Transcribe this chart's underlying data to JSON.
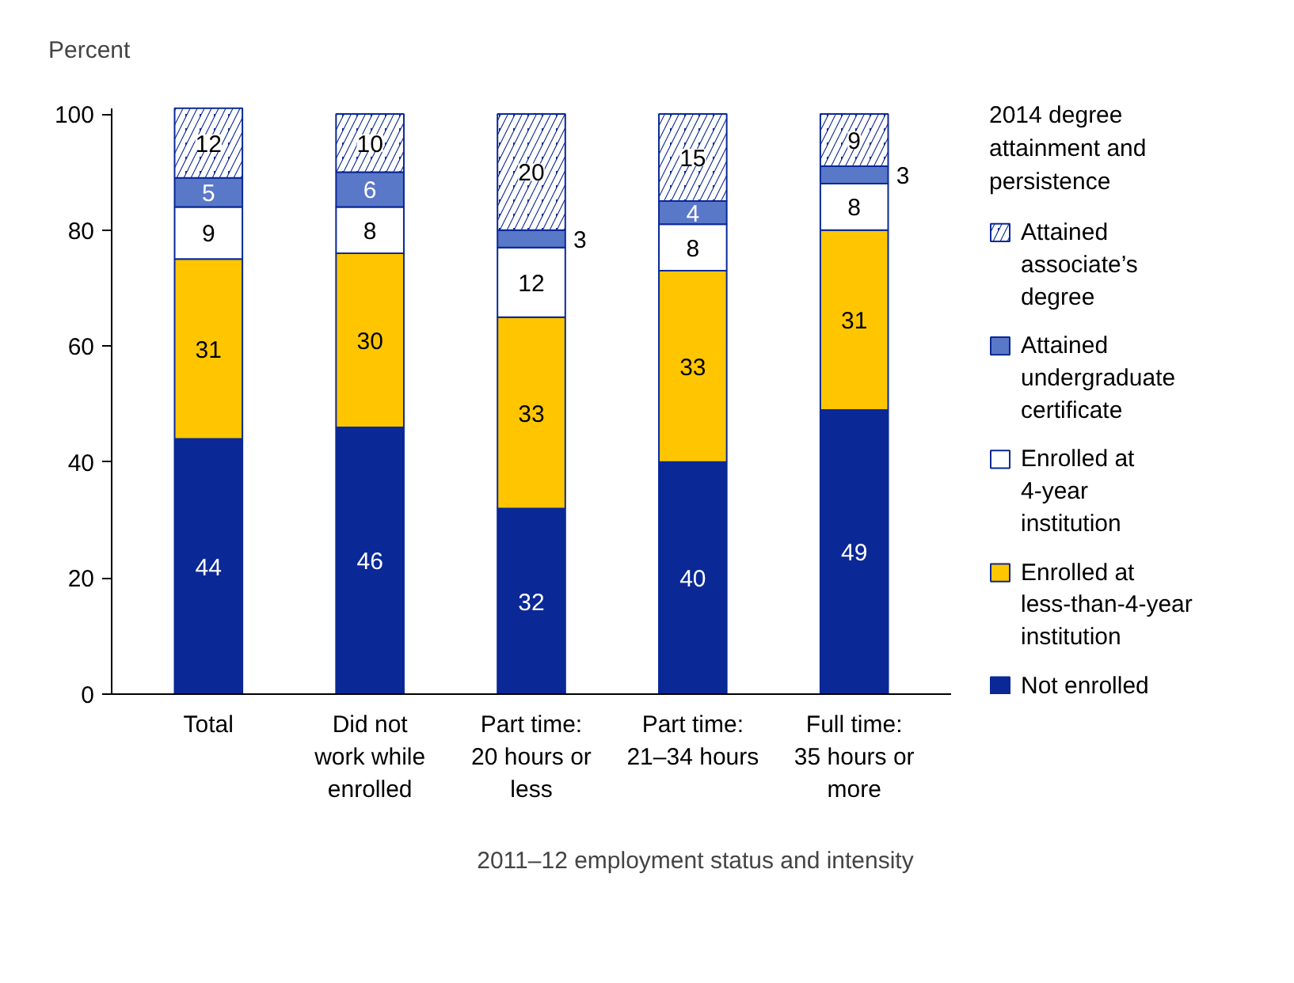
{
  "chart_data": {
    "type": "bar",
    "stacked": true,
    "xlabel": "2011–12 employment status and intensity",
    "ylabel": "Percent",
    "legend_title": "2014 degree attainment and persistence",
    "categories": [
      "Total",
      "Did not work while enrolled",
      "Part time: 20 hours or less",
      "Part time: 21–34 hours",
      "Full time: 35 hours or more"
    ],
    "series": [
      {
        "name": "Not enrolled",
        "color": "#0a2896",
        "values": [
          44,
          46,
          32,
          40,
          49
        ]
      },
      {
        "name": "Enrolled at less-than-4-year institution",
        "color": "#ffc600",
        "values": [
          31,
          30,
          33,
          33,
          31
        ]
      },
      {
        "name": "Enrolled at 4-year institution",
        "color": "#ffffff",
        "values": [
          9,
          8,
          12,
          8,
          8
        ]
      },
      {
        "name": "Attained undergraduate certificate",
        "color": "#5a78c8",
        "values": [
          5,
          6,
          3,
          4,
          3
        ]
      },
      {
        "name": "Attained associate’s degree",
        "color": "#0a2896",
        "values": [
          12,
          10,
          20,
          15,
          9
        ]
      }
    ],
    "ylim": [
      0,
      101
    ],
    "yticks": [
      0,
      20,
      40,
      60,
      80,
      100
    ],
    "grid": false,
    "legend": "right",
    "data_labels": true
  }
}
